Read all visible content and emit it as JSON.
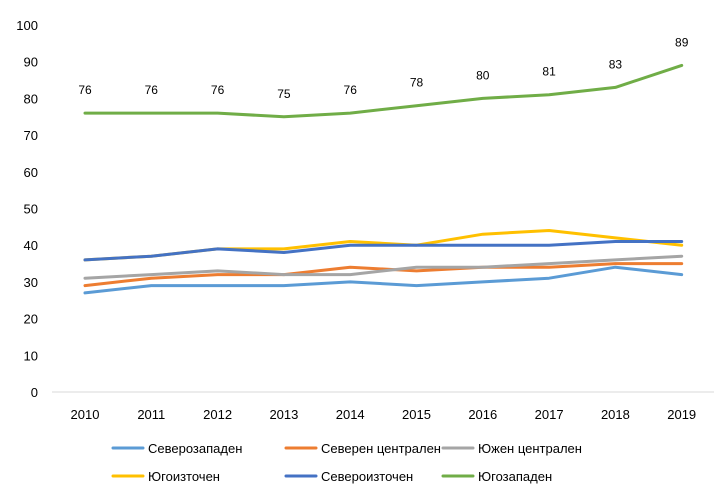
{
  "chart_data": {
    "type": "line",
    "title": "",
    "xlabel": "",
    "ylabel": "",
    "ylim": [
      0,
      100
    ],
    "yticks": [
      "0",
      "10",
      "20",
      "30",
      "40",
      "50",
      "60",
      "70",
      "80",
      "90",
      "100"
    ],
    "categories": [
      "2010",
      "2011",
      "2012",
      "2013",
      "2014",
      "2015",
      "2016",
      "2017",
      "2018",
      "2019"
    ],
    "grid": false,
    "legend_position": "bottom",
    "series": [
      {
        "name": "Северозападен",
        "color": "#5B9BD5",
        "values": [
          27,
          29,
          29,
          29,
          30,
          29,
          30,
          31,
          34,
          32
        ]
      },
      {
        "name": "Северен централен",
        "color": "#ED7D31",
        "values": [
          29,
          31,
          32,
          32,
          34,
          33,
          34,
          34,
          35,
          35
        ]
      },
      {
        "name": "Южен централен",
        "color": "#A5A5A5",
        "values": [
          31,
          32,
          33,
          32,
          32,
          34,
          34,
          35,
          36,
          37
        ]
      },
      {
        "name": "Югоизточен",
        "color": "#FFC000",
        "values": [
          36,
          37,
          39,
          39,
          41,
          40,
          43,
          44,
          42,
          40
        ]
      },
      {
        "name": "Североизточен",
        "color": "#4472C4",
        "values": [
          36,
          37,
          39,
          38,
          40,
          40,
          40,
          40,
          41,
          41
        ]
      },
      {
        "name": "Югозападен",
        "color": "#70AD47",
        "values": [
          76,
          76,
          76,
          75,
          76,
          78,
          80,
          81,
          83,
          89
        ],
        "data_labels": [
          "76",
          "76",
          "76",
          "75",
          "76",
          "78",
          "80",
          "81",
          "83",
          "89"
        ]
      }
    ]
  }
}
